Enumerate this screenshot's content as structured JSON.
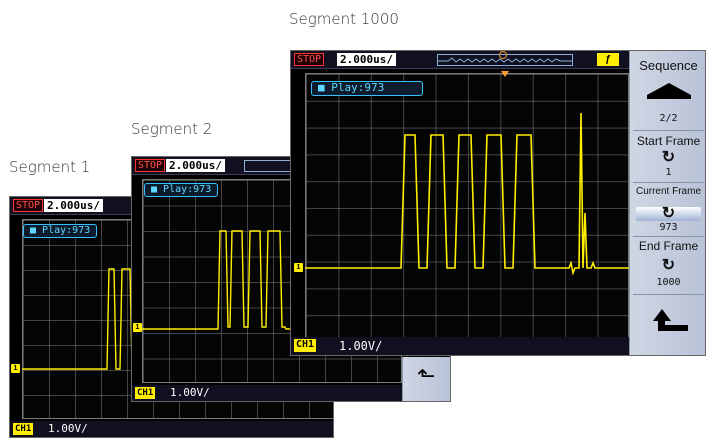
{
  "captions": {
    "segment_1": "Segment 1",
    "segment_2": "Segment 2",
    "segment_1000": "Segment 1000"
  },
  "scope": {
    "run_state": "STOP",
    "timebase": "2.000us/",
    "play_status": "Play:973",
    "channel_label": "CH1",
    "channel_scale": "1.00V/",
    "channel_marker": "1"
  },
  "menu": {
    "title": "Sequence",
    "page": "2/2",
    "start_frame_label": "Start Frame",
    "start_frame_value": "1",
    "current_frame_label": "Current Frame",
    "current_frame_value": "973",
    "end_frame_label": "End Frame",
    "end_frame_value": "1000"
  },
  "colors": {
    "trace": "#ffee00",
    "play_box": "#3ac0ff",
    "menu_bg": "#c4ccdc",
    "stop": "#ff3030"
  },
  "icons": {
    "up": "up-arrow-icon",
    "rotate": "rotate-knob-icon",
    "back": "return-arrow-icon"
  }
}
